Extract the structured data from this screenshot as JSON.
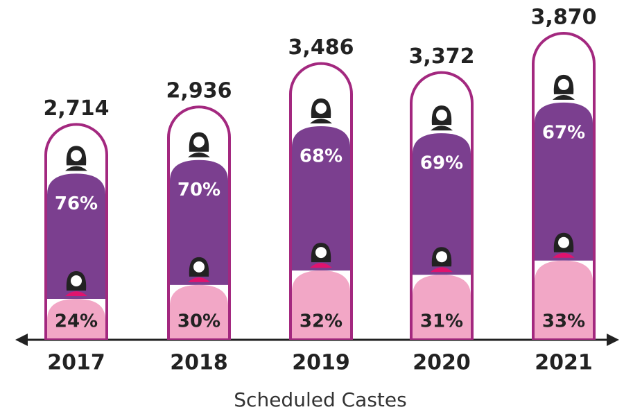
{
  "chart_data": {
    "type": "capsule",
    "x_label": "Scheduled Castes",
    "categories": [
      "2017",
      "2018",
      "2019",
      "2020",
      "2021"
    ],
    "values": [
      2714,
      2936,
      3486,
      3372,
      3870
    ],
    "value_labels": [
      "2,714",
      "2,936",
      "3,486",
      "3,372",
      "3,870"
    ],
    "outline_color": "#a3287f",
    "series": [
      {
        "color": "#7b3f8f",
        "values": [
          76,
          70,
          68,
          69,
          67
        ],
        "value_labels": [
          "76%",
          "70%",
          "68%",
          "69%",
          "67%"
        ]
      },
      {
        "color": "#f2a7c6",
        "values": [
          24,
          30,
          32,
          31,
          33
        ],
        "value_labels": [
          "24%",
          "30%",
          "32%",
          "31%",
          "33%"
        ]
      }
    ]
  }
}
